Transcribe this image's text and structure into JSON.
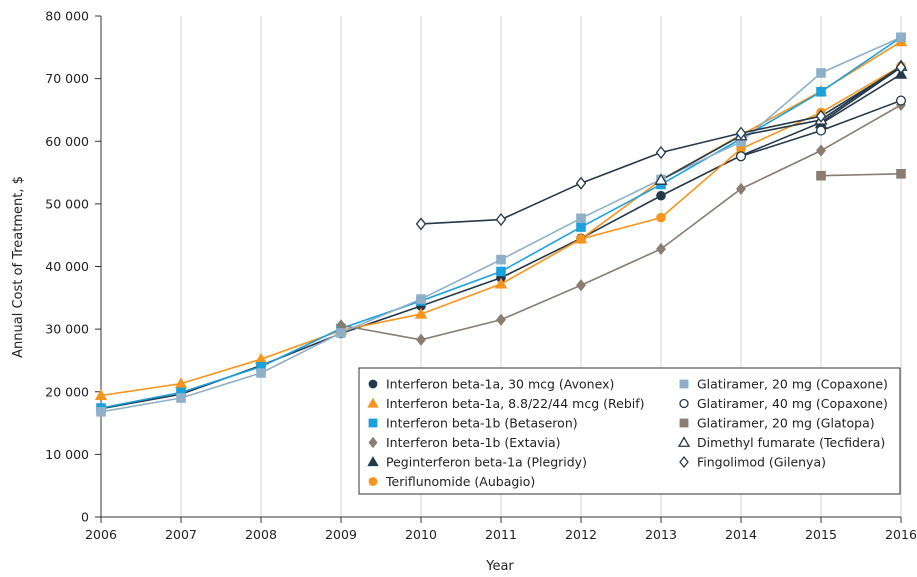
{
  "chart_data": {
    "type": "line",
    "xlabel": "Year",
    "ylabel": "Annual Cost of Treatment, $",
    "xlim": [
      2006,
      2016
    ],
    "ylim": [
      0,
      80000
    ],
    "x_ticks": [
      "2006",
      "2007",
      "2008",
      "2009",
      "2010",
      "2011",
      "2012",
      "2013",
      "2014",
      "2015",
      "2016"
    ],
    "y_ticks": [
      "0",
      "10 000",
      "20 000",
      "30 000",
      "40 000",
      "50 000",
      "60 000",
      "70 000",
      "80 000"
    ],
    "grid": "vertical",
    "legend_position": "bottom-right",
    "series": [
      {
        "name": "Interferon beta-1a, 30 mcg (Avonex)",
        "color": "#24394a",
        "marker": "circle",
        "filled": true,
        "x": [
          2006,
          2007,
          2008,
          2009,
          2010,
          2011,
          2012,
          2013,
          2014,
          2015,
          2016
        ],
        "y": [
          17300,
          19600,
          24200,
          29300,
          33700,
          38200,
          44500,
          51300,
          57700,
          63000,
          71800
        ]
      },
      {
        "name": "Interferon beta-1a, 8.8/22/44 mcg (Rebif)",
        "color": "#f7941d",
        "marker": "triangle",
        "filled": true,
        "x": [
          2006,
          2007,
          2008,
          2009,
          2010,
          2011,
          2012,
          2013,
          2014,
          2015,
          2016
        ],
        "y": [
          19400,
          21300,
          25200,
          29800,
          32400,
          37200,
          44400,
          53800,
          61000,
          68000,
          75900
        ]
      },
      {
        "name": "Interferon beta-1b (Betaseron)",
        "color": "#1ba1dc",
        "marker": "square",
        "filled": true,
        "x": [
          2006,
          2007,
          2008,
          2009,
          2010,
          2011,
          2012,
          2013,
          2014,
          2015,
          2016
        ],
        "y": [
          17400,
          19900,
          24000,
          30100,
          34500,
          39200,
          46300,
          53100,
          60400,
          67900,
          76600
        ]
      },
      {
        "name": "Interferon beta-1b (Extavia)",
        "color": "#8a7d70",
        "marker": "diamond",
        "filled": true,
        "x": [
          2009,
          2010,
          2011,
          2012,
          2013,
          2014,
          2015,
          2016
        ],
        "y": [
          30600,
          28300,
          31500,
          37000,
          42800,
          52400,
          58500,
          65800
        ]
      },
      {
        "name": "Peginterferon beta-1a (Plegridy)",
        "color": "#24394a",
        "marker": "triangle",
        "filled": true,
        "x": [
          2015,
          2016
        ],
        "y": [
          62800,
          70700
        ]
      },
      {
        "name": "Teriflunomide (Aubagio)",
        "color": "#f7941d",
        "marker": "circle",
        "filled": true,
        "x": [
          2012,
          2013,
          2014,
          2015,
          2016
        ],
        "y": [
          44400,
          47800,
          58800,
          64600,
          72000
        ]
      },
      {
        "name": "Glatiramer, 20 mg (Copaxone)",
        "color": "#8fb0c8",
        "marker": "square",
        "filled": true,
        "x": [
          2006,
          2007,
          2008,
          2009,
          2010,
          2011,
          2012,
          2013,
          2014,
          2015,
          2016
        ],
        "y": [
          16800,
          19000,
          23000,
          29400,
          34800,
          41100,
          47700,
          53900,
          59900,
          70900,
          76600
        ]
      },
      {
        "name": "Glatiramer, 40 mg (Copaxone)",
        "color": "#24394a",
        "marker": "circle",
        "filled": false,
        "x": [
          2014,
          2015,
          2016
        ],
        "y": [
          57600,
          61700,
          66500
        ]
      },
      {
        "name": "Glatiramer, 20 mg (Glatopa)",
        "color": "#8a7d70",
        "marker": "square",
        "filled": true,
        "x": [
          2015,
          2016
        ],
        "y": [
          54500,
          54800
        ]
      },
      {
        "name": "Dimethyl fumarate (Tecfidera)",
        "color": "#24394a",
        "marker": "triangle",
        "filled": false,
        "x": [
          2013,
          2014,
          2015,
          2016
        ],
        "y": [
          53800,
          60900,
          63400,
          72000
        ]
      },
      {
        "name": "Fingolimod (Gilenya)",
        "color": "#24394a",
        "marker": "diamond",
        "filled": false,
        "x": [
          2010,
          2011,
          2012,
          2013,
          2014,
          2015,
          2016
        ],
        "y": [
          46800,
          47500,
          53300,
          58200,
          61300,
          64000,
          71800
        ]
      }
    ]
  }
}
